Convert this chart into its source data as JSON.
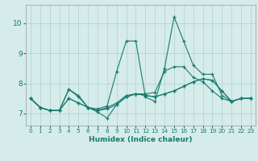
{
  "title": "",
  "xlabel": "Humidex (Indice chaleur)",
  "bg_color": "#d5ecea",
  "grid_color": "#b0d0cc",
  "line_color": "#1a7a6e",
  "xlim": [
    -0.5,
    23.5
  ],
  "ylim": [
    6.6,
    10.6
  ],
  "yticks": [
    7,
    8,
    9,
    10
  ],
  "xticks": [
    0,
    1,
    2,
    3,
    4,
    5,
    6,
    7,
    8,
    9,
    10,
    11,
    12,
    13,
    14,
    15,
    16,
    17,
    18,
    19,
    20,
    21,
    22,
    23
  ],
  "series": [
    {
      "x": [
        0,
        1,
        2,
        3,
        4,
        5,
        6,
        7,
        8,
        9,
        10,
        11,
        12,
        13,
        14,
        15,
        16,
        17,
        18,
        19,
        20,
        21,
        22,
        23
      ],
      "y": [
        7.5,
        7.2,
        7.1,
        7.1,
        7.8,
        7.6,
        7.2,
        7.15,
        7.25,
        8.4,
        9.4,
        9.4,
        7.55,
        7.4,
        8.5,
        10.2,
        9.4,
        8.6,
        8.3,
        8.3,
        7.6,
        7.4,
        7.5,
        7.5
      ]
    },
    {
      "x": [
        0,
        1,
        2,
        3,
        4,
        5,
        6,
        7,
        8,
        9,
        10,
        11,
        12,
        13,
        14,
        15,
        16,
        17,
        18,
        19,
        20,
        21,
        22,
        23
      ],
      "y": [
        7.5,
        7.2,
        7.1,
        7.1,
        7.5,
        7.35,
        7.2,
        7.1,
        7.15,
        7.3,
        7.55,
        7.65,
        7.6,
        7.55,
        7.65,
        7.75,
        7.9,
        8.05,
        8.15,
        8.1,
        7.75,
        7.4,
        7.5,
        7.5
      ]
    },
    {
      "x": [
        0,
        1,
        2,
        3,
        4,
        5,
        6,
        7,
        8,
        9,
        10,
        11,
        12,
        13,
        14,
        15,
        16,
        17,
        18,
        19,
        20,
        21,
        22,
        23
      ],
      "y": [
        7.5,
        7.2,
        7.1,
        7.1,
        7.8,
        7.55,
        7.2,
        7.05,
        6.85,
        7.3,
        7.55,
        7.65,
        7.6,
        7.55,
        7.65,
        7.75,
        7.9,
        8.05,
        8.15,
        8.1,
        7.75,
        7.4,
        7.5,
        7.5
      ]
    },
    {
      "x": [
        0,
        1,
        2,
        3,
        4,
        5,
        6,
        7,
        8,
        9,
        10,
        11,
        12,
        13,
        14,
        15,
        16,
        17,
        18,
        19,
        20,
        21,
        22,
        23
      ],
      "y": [
        7.5,
        7.2,
        7.1,
        7.1,
        7.5,
        7.35,
        7.2,
        7.1,
        7.2,
        7.35,
        7.6,
        7.65,
        7.65,
        7.7,
        8.4,
        8.55,
        8.55,
        8.2,
        8.05,
        7.75,
        7.5,
        7.4,
        7.5,
        7.5
      ]
    }
  ]
}
